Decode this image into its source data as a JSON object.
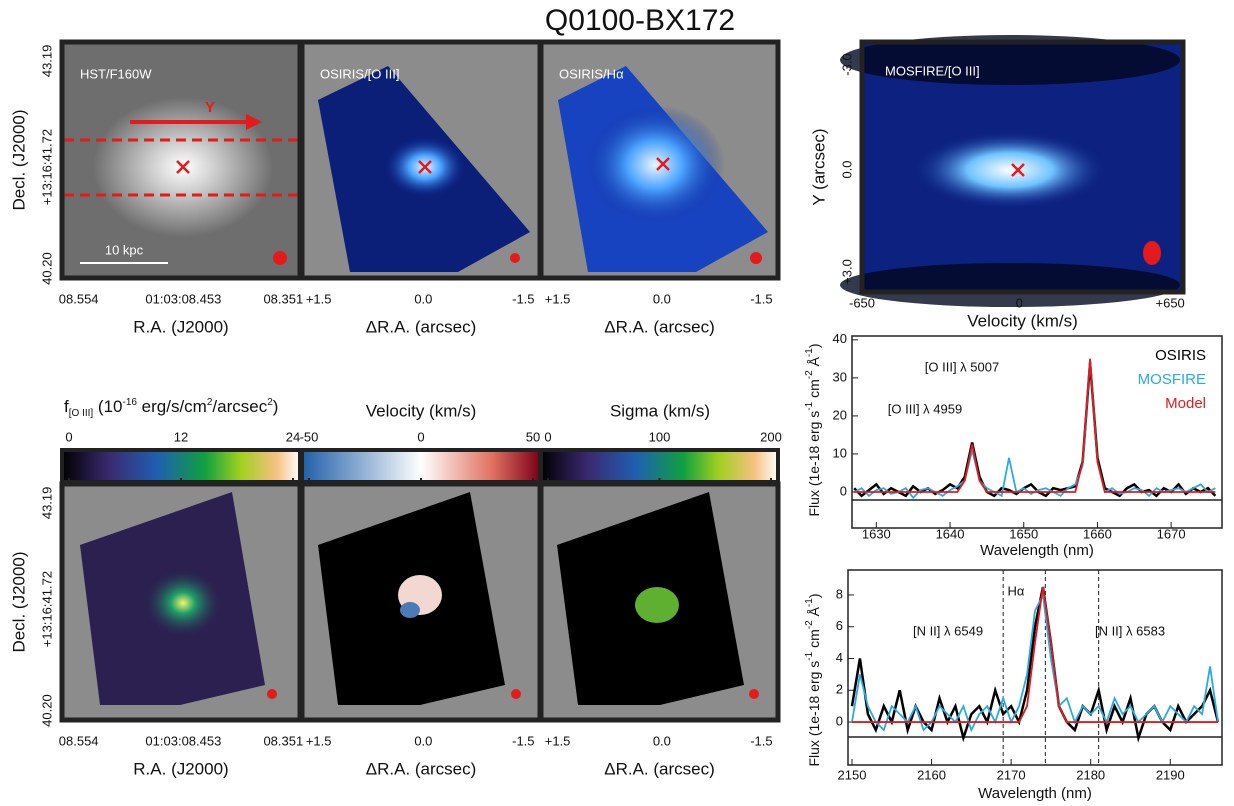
{
  "title": "Q0100-BX172",
  "image_panels": [
    {
      "label": "HST/F160W",
      "xlabel": "R.A. (J2000)",
      "xticks": [
        "08.554",
        "01:03:08.453",
        "08.351"
      ],
      "ylabel": "Decl. (J2000)",
      "yticks": [
        "43.19",
        "+13:16:41.72",
        "40.20"
      ],
      "annotations": [
        "Y",
        "10 kpc"
      ]
    },
    {
      "label": "OSIRIS/[O III]",
      "xlabel": "ΔR.A. (arcsec)",
      "xticks": [
        "+1.5",
        "0.0",
        "-1.5"
      ]
    },
    {
      "label": "OSIRIS/Hα",
      "xlabel": "ΔR.A. (arcsec)",
      "xticks": [
        "+1.5",
        "0.0",
        "-1.5"
      ]
    },
    {
      "label": "MOSFIRE/[O III]",
      "xlabel": "Velocity (km/s)",
      "xticks": [
        "-650",
        "0",
        "+650"
      ],
      "ylabel": "Y (arcsec)",
      "yticks": [
        "-3.0",
        "0.0",
        "+3.0"
      ]
    },
    {
      "xlabel": "R.A. (J2000)",
      "xticks": [
        "08.554",
        "01:03:08.453",
        "08.351"
      ],
      "ylabel": "Decl. (J2000)",
      "yticks": [
        "43.19",
        "+13:16:41.72",
        "40.20"
      ]
    },
    {
      "xlabel": "ΔR.A. (arcsec)",
      "xticks": [
        "+1.5",
        "0.0",
        "-1.5"
      ]
    },
    {
      "xlabel": "ΔR.A. (arcsec)",
      "xticks": [
        "+1.5",
        "0.0",
        "-1.5"
      ]
    }
  ],
  "colorbars": [
    {
      "label_parts": [
        "f",
        "[O III]",
        " (10",
        "-16",
        " erg/s/cm",
        "2",
        "/arcsec",
        "2",
        ")"
      ],
      "lim": [
        0,
        24
      ],
      "ticks": [
        0,
        12,
        24
      ]
    },
    {
      "label": "Velocity (km/s)",
      "lim": [
        -50,
        50
      ],
      "ticks": [
        -50,
        0,
        50
      ]
    },
    {
      "label": "Sigma (km/s)",
      "lim": [
        0,
        200
      ],
      "ticks": [
        0,
        100,
        200
      ]
    }
  ],
  "chart_data": [
    {
      "type": "line",
      "xlabel": "Wavelength (nm)",
      "ylabel_parts": [
        "Flux (1e-18 erg s",
        "-1",
        " cm",
        "-2",
        " Å",
        "-1",
        ")"
      ],
      "annotations": [
        "[O III] λ 5007",
        "[O III] λ 4959"
      ],
      "xlim": [
        1626.7,
        1676.9
      ],
      "xticks": [
        1630,
        1640,
        1650,
        1660,
        1670
      ],
      "ylim": [
        -2.1,
        41
      ],
      "yticks": [
        0,
        10,
        20,
        30,
        40
      ],
      "x": [
        1627,
        1628,
        1629,
        1630,
        1631,
        1632,
        1633,
        1634,
        1635,
        1636,
        1637,
        1638,
        1639,
        1640,
        1641,
        1642,
        1643,
        1644,
        1645,
        1646,
        1647,
        1648,
        1649,
        1650,
        1651,
        1652,
        1653,
        1654,
        1655,
        1656,
        1657,
        1658,
        1659,
        1660,
        1661,
        1662,
        1663,
        1664,
        1665,
        1666,
        1667,
        1668,
        1669,
        1670,
        1671,
        1672,
        1673,
        1674,
        1675,
        1676
      ],
      "series": [
        {
          "name": "OSIRIS",
          "color": "#000000",
          "values": [
            1,
            -1,
            0.5,
            2,
            -0.5,
            1,
            0,
            -1,
            1.5,
            0,
            1,
            -0.5,
            0.5,
            2,
            1,
            4,
            13,
            4,
            0,
            -1,
            1,
            0.5,
            -0.5,
            1,
            2,
            0,
            -1,
            1,
            0.5,
            1,
            1.5,
            8,
            34,
            9,
            1,
            0,
            -1,
            1,
            2,
            0,
            0.5,
            -1,
            1,
            0,
            2,
            -0.5,
            1,
            0,
            1,
            -1
          ]
        },
        {
          "name": "MOSFIRE",
          "color": "#29abe2",
          "values": [
            0,
            1,
            -1,
            0.5,
            1,
            -0.5,
            0,
            1,
            -1.5,
            0.5,
            1,
            0,
            -1,
            0.5,
            1.5,
            3,
            11,
            3,
            1,
            0,
            -1,
            9,
            0,
            1,
            -0.5,
            0.5,
            1,
            0,
            -1,
            1,
            2,
            7,
            35,
            8,
            0,
            1,
            -0.5,
            0,
            1,
            0.5,
            -1,
            1,
            0,
            0.5,
            1,
            0,
            1,
            2,
            0,
            1
          ]
        },
        {
          "name": "Model",
          "color": "#e41a1c",
          "values": [
            0,
            0,
            0,
            0,
            0,
            0,
            0,
            0,
            0,
            0,
            0,
            0,
            0,
            0,
            0,
            3,
            12.5,
            3,
            0,
            0,
            0,
            0,
            0,
            0,
            0,
            0,
            0,
            0,
            0,
            0,
            0,
            8,
            35,
            8,
            0,
            0,
            0,
            0,
            0,
            0,
            0,
            0,
            0,
            0,
            0,
            0,
            0,
            0,
            0,
            0
          ]
        }
      ]
    },
    {
      "type": "line",
      "xlabel": "Wavelength (nm)",
      "ylabel_parts": [
        "Flux (1e-18 erg s",
        "-1",
        " cm",
        "-2",
        " Å",
        "-1",
        ")"
      ],
      "annotations": [
        "Hα",
        "[N II] λ 6549",
        "[N II] λ 6583"
      ],
      "xlim": [
        2149.5,
        2196.5
      ],
      "xticks": [
        2150,
        2160,
        2170,
        2180,
        2190
      ],
      "ylim": [
        -0.94,
        9.57
      ],
      "yticks": [
        0,
        2,
        4,
        6,
        8
      ],
      "vlines": [
        2169,
        2174.3,
        2181
      ],
      "x": [
        2150,
        2151,
        2152,
        2153,
        2154,
        2155,
        2156,
        2157,
        2158,
        2159,
        2160,
        2161,
        2162,
        2163,
        2164,
        2165,
        2166,
        2167,
        2168,
        2169,
        2170,
        2171,
        2172,
        2173,
        2174,
        2175,
        2176,
        2177,
        2178,
        2179,
        2180,
        2181,
        2182,
        2183,
        2184,
        2185,
        2186,
        2187,
        2188,
        2189,
        2190,
        2191,
        2192,
        2193,
        2194,
        2195,
        2196
      ],
      "series": [
        {
          "name": "OSIRIS",
          "color": "#000000",
          "values": [
            1,
            4,
            0.5,
            -0.5,
            1,
            0,
            2,
            -0.5,
            1,
            0,
            -0.5,
            1.5,
            0,
            1,
            -1,
            0.5,
            1,
            0,
            2,
            0.5,
            1,
            0,
            2,
            6,
            8.5,
            5,
            1,
            0,
            -0.5,
            1,
            0.5,
            2,
            -0.5,
            1,
            0,
            1.5,
            -1,
            0.5,
            1,
            0,
            -0.5,
            1,
            0,
            0.5,
            1,
            2,
            0
          ]
        },
        {
          "name": "MOSFIRE",
          "color": "#29abe2",
          "values": [
            0,
            3,
            1,
            0,
            -0.5,
            1,
            0.5,
            0,
            1,
            -0.5,
            0,
            1,
            0.5,
            0,
            1,
            -0.5,
            0.5,
            1,
            0,
            1.5,
            0,
            1,
            3,
            7,
            8,
            4,
            1,
            1.5,
            0,
            1,
            0.5,
            1,
            0,
            1.5,
            0.5,
            1,
            0,
            0.5,
            1,
            0,
            1,
            0.5,
            0,
            1,
            0.5,
            3.5,
            0
          ]
        },
        {
          "name": "Model",
          "color": "#e41a1c",
          "values": [
            0,
            0,
            0,
            0,
            0,
            0,
            0,
            0,
            0,
            0,
            0,
            0,
            0,
            0,
            0,
            0,
            0,
            0,
            0,
            0,
            0,
            0,
            1,
            5,
            8.5,
            5,
            1,
            0,
            0,
            0,
            0,
            0,
            0,
            0,
            0,
            0,
            0,
            0,
            0,
            0,
            0,
            0,
            0,
            0,
            0,
            0,
            0
          ]
        }
      ]
    }
  ]
}
